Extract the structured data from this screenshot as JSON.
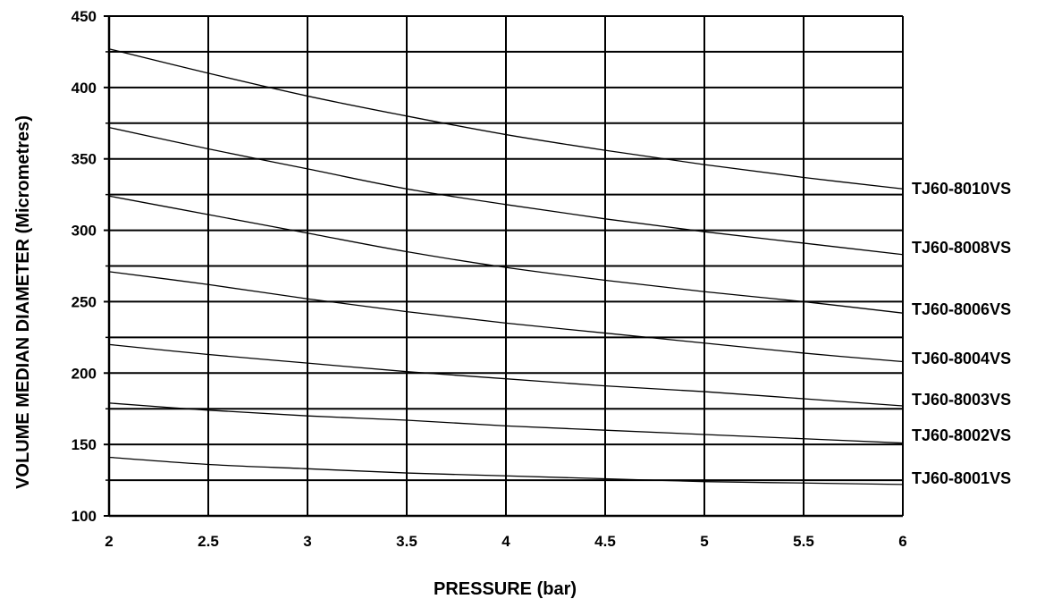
{
  "chart_data": {
    "type": "line",
    "title": "",
    "xlabel": "PRESSURE  (bar)",
    "ylabel": "VOLUME  MEDIAN  DIAMETER  (Micrometres)",
    "xlim": [
      2,
      6
    ],
    "ylim": [
      100,
      450
    ],
    "x_ticks": [
      "2",
      "2.5",
      "3",
      "3.5",
      "4",
      "4.5",
      "5",
      "5.5",
      "6"
    ],
    "y_ticks": [
      "100",
      "150",
      "200",
      "250",
      "300",
      "350",
      "400",
      "450"
    ],
    "grid": true,
    "legend": "series labels at right end of lines",
    "x": [
      2,
      2.5,
      3,
      3.5,
      4,
      4.5,
      5,
      5.5,
      6
    ],
    "series": [
      {
        "name": "TJ60-8010VS",
        "values": [
          427,
          410,
          394,
          380,
          367,
          356,
          346,
          337,
          329
        ]
      },
      {
        "name": "TJ60-8008VS",
        "values": [
          372,
          357,
          343,
          329,
          318,
          308,
          299,
          291,
          283
        ]
      },
      {
        "name": "TJ60-8006VS",
        "values": [
          324,
          311,
          298,
          285,
          274,
          265,
          257,
          250,
          242
        ]
      },
      {
        "name": "TJ60-8004VS",
        "values": [
          271,
          262,
          252,
          243,
          235,
          228,
          221,
          214,
          208
        ]
      },
      {
        "name": "TJ60-8003VS",
        "values": [
          220,
          213,
          207,
          201,
          196,
          191,
          187,
          182,
          177
        ]
      },
      {
        "name": "TJ60-8002VS",
        "values": [
          179,
          174,
          170,
          167,
          163,
          160,
          157,
          154,
          151
        ]
      },
      {
        "name": "TJ60-8001VS",
        "values": [
          141,
          136,
          133,
          130,
          128,
          126,
          124,
          123,
          122
        ]
      }
    ]
  }
}
